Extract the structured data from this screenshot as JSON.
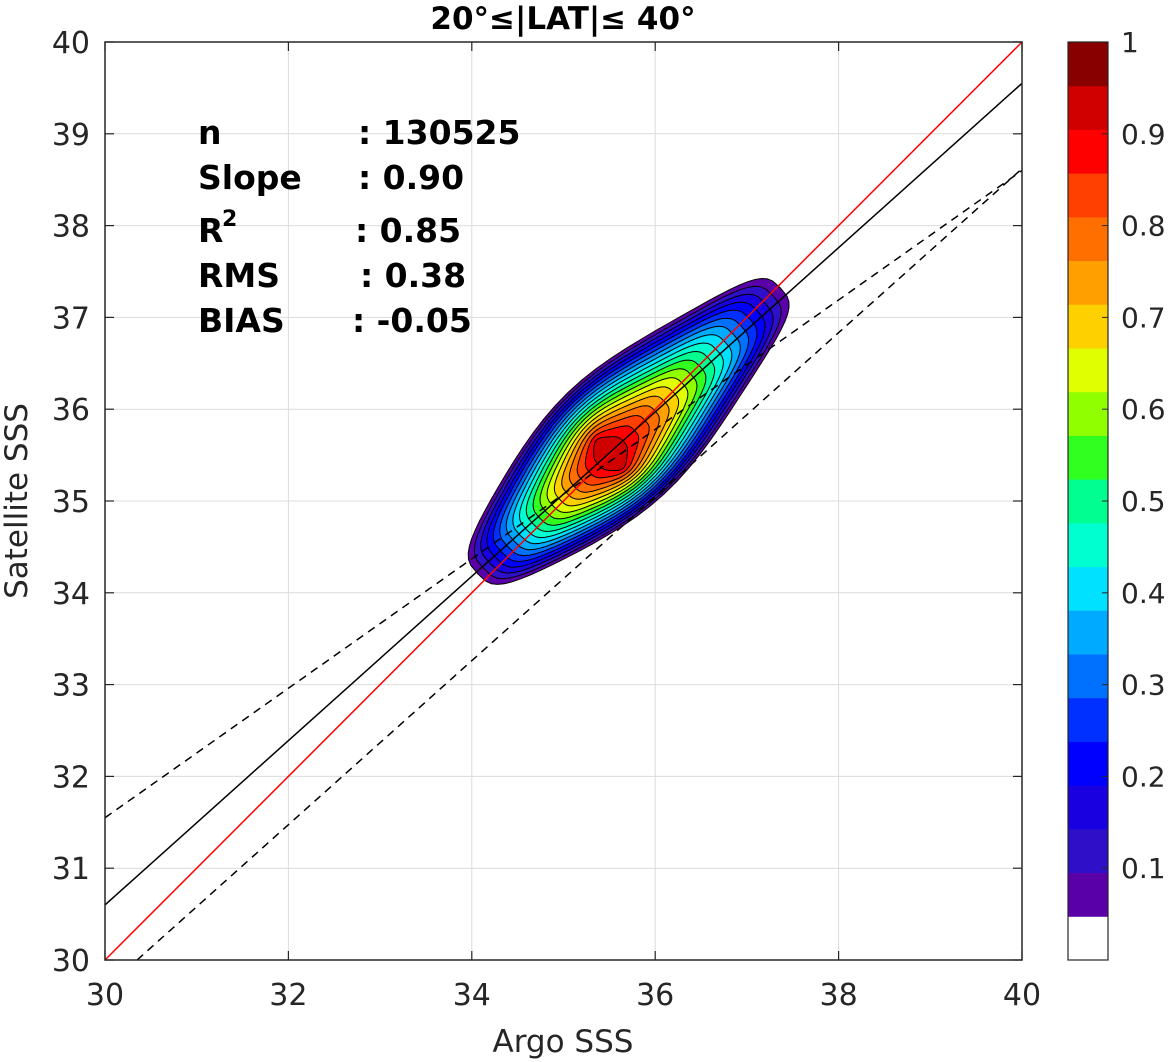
{
  "chart_data": {
    "type": "heatmap",
    "title": "20°≤|LAT|≤ 40°",
    "xlabel": "Argo SSS",
    "ylabel": "Satellite SSS",
    "xlim": [
      30,
      40
    ],
    "ylim": [
      30,
      40
    ],
    "xticks": [
      "30",
      "32",
      "34",
      "36",
      "38",
      "40"
    ],
    "yticks": [
      "30",
      "31",
      "32",
      "33",
      "34",
      "35",
      "36",
      "37",
      "38",
      "39",
      "40"
    ],
    "grid": true,
    "stats": [
      {
        "label": "n",
        "value": ": 130525"
      },
      {
        "label": "Slope",
        "value": ": 0.90"
      },
      {
        "label": "R",
        "sup": "2",
        "value": ": 0.85"
      },
      {
        "label": "RMS",
        "value": ": 0.38"
      },
      {
        "label": "BIAS",
        "value": ": -0.05"
      }
    ],
    "lines": [
      {
        "kind": "one-to-one",
        "color": "#ff0000",
        "style": "solid",
        "points": [
          [
            30,
            30
          ],
          [
            40,
            40
          ]
        ]
      },
      {
        "kind": "regression-fit",
        "color": "#000000",
        "style": "solid",
        "points": [
          [
            30,
            30.6
          ],
          [
            40,
            39.55
          ]
        ]
      },
      {
        "kind": "upper-bound",
        "color": "#000000",
        "style": "dashed",
        "points": [
          [
            30,
            31.55
          ],
          [
            40,
            38.6
          ]
        ],
        "anchor": "upper"
      },
      {
        "kind": "lower-bound",
        "color": "#000000",
        "style": "dashed",
        "points": [
          [
            30.35,
            30
          ],
          [
            40,
            38.62
          ]
        ]
      }
    ],
    "density_peak": {
      "x": 35.5,
      "y": 35.5,
      "value": 1.0
    },
    "density_axis": [
      [
        34.0,
        34.15
      ],
      [
        34.5,
        34.55
      ],
      [
        35.0,
        35.05
      ],
      [
        35.5,
        35.5
      ],
      [
        36.0,
        36.0
      ],
      [
        36.5,
        36.55
      ],
      [
        37.0,
        37.1
      ],
      [
        37.45,
        37.4
      ]
    ],
    "density_levels": [
      0.05,
      0.1,
      0.15,
      0.2,
      0.25,
      0.3,
      0.35,
      0.4,
      0.45,
      0.5,
      0.55,
      0.6,
      0.65,
      0.7,
      0.75,
      0.8,
      0.85,
      0.9,
      0.95
    ],
    "colorbar": {
      "range": [
        0,
        1
      ],
      "ticks": [
        "0.1",
        "0.2",
        "0.3",
        "0.4",
        "0.5",
        "0.6",
        "0.7",
        "0.8",
        "0.9",
        "1"
      ],
      "colors": [
        "#ffffff",
        "#5a00a8",
        "#2f10c8",
        "#1800e0",
        "#0000ff",
        "#0030ff",
        "#0070ff",
        "#00aaff",
        "#00e0ff",
        "#00ffd0",
        "#00ff90",
        "#30ff20",
        "#90ff00",
        "#e0ff00",
        "#ffd000",
        "#ffa000",
        "#ff6f00",
        "#ff4000",
        "#ff0000",
        "#d00000",
        "#880000"
      ]
    }
  }
}
